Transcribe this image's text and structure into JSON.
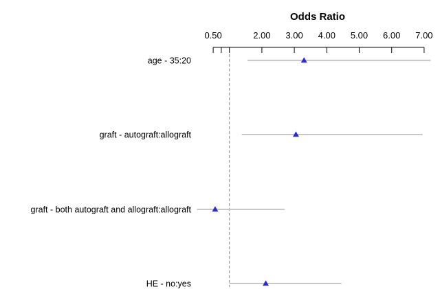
{
  "chart_data": {
    "type": "forest",
    "xlabel": "Odds Ratio",
    "axis_position": "top",
    "x_tick_labels": [
      "0.50",
      "2.00",
      "3.00",
      "4.00",
      "5.00",
      "6.00",
      "7.00"
    ],
    "x_ticks": [
      0.5,
      0.75,
      1.0,
      2.0,
      3.0,
      4.0,
      5.0,
      6.0,
      7.0
    ],
    "reference_line": 1.0,
    "rows": [
      {
        "label": "age - 35:20",
        "or": 3.3,
        "lower": 1.56,
        "upper": 7.2
      },
      {
        "label": "graft - autograft:allograft",
        "or": 3.05,
        "lower": 1.38,
        "upper": 6.95
      },
      {
        "label": "graft - both autograft and allograft:allograft",
        "or": 0.56,
        "lower": 0.0,
        "upper": 2.7
      },
      {
        "label": "HE - no:yes",
        "or": 2.12,
        "lower": 1.0,
        "upper": 4.45
      }
    ],
    "colors": {
      "ci": "#c8c8c8",
      "point": "#2a2ad6",
      "refline": "#8c8c8c",
      "axis": "#000000"
    }
  }
}
